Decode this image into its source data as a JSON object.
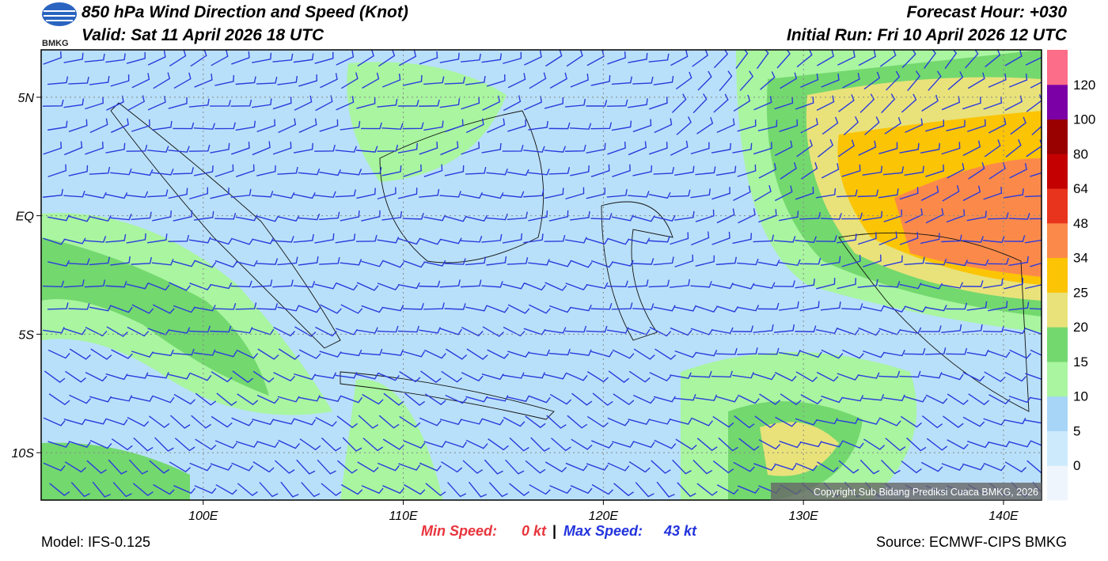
{
  "header": {
    "logo_text": "BMKG",
    "title": "850 hPa Wind Direction and Speed (Knot)",
    "valid": "Valid: Sat 11 April 2026 18 UTC",
    "forecast_hour": "Forecast Hour: +030",
    "initial_run": "Initial Run: Fri 10 April 2026 12 UTC"
  },
  "map": {
    "lon_range": [
      91.9,
      141.9
    ],
    "lat_range": [
      -12,
      7
    ],
    "lon_ticks": [
      {
        "value": 100,
        "label": "100E"
      },
      {
        "value": 110,
        "label": "110E"
      },
      {
        "value": 120,
        "label": "120E"
      },
      {
        "value": 130,
        "label": "130E"
      },
      {
        "value": 140,
        "label": "140E"
      }
    ],
    "lat_ticks": [
      {
        "value": 5,
        "label": "5N"
      },
      {
        "value": 0,
        "label": "EQ"
      },
      {
        "value": -5,
        "label": "5S"
      },
      {
        "value": -10,
        "label": "10S"
      }
    ],
    "copyright": "Copyright Sub Bidang Prediksi Cuaca BMKG, 2026"
  },
  "colorbar": {
    "labels": [
      "0",
      "5",
      "10",
      "15",
      "20",
      "25",
      "34",
      "48",
      "64",
      "80",
      "100",
      "120"
    ],
    "colors": [
      "#eef5fd",
      "#cdeafc",
      "#a7d5f7",
      "#a9f5a0",
      "#73d86e",
      "#e9e27a",
      "#fbc405",
      "#fb8a4a",
      "#e8341c",
      "#c40000",
      "#990000",
      "#7b00a6",
      "#fb6d88"
    ]
  },
  "footer": {
    "model": "Model: IFS-0.125",
    "min_label": "Min Speed:",
    "min_value": "0 kt",
    "separator": "|",
    "max_label": "Max Speed:",
    "max_value": "43 kt",
    "source": "Source: ECMWF-CIPS BMKG"
  }
}
